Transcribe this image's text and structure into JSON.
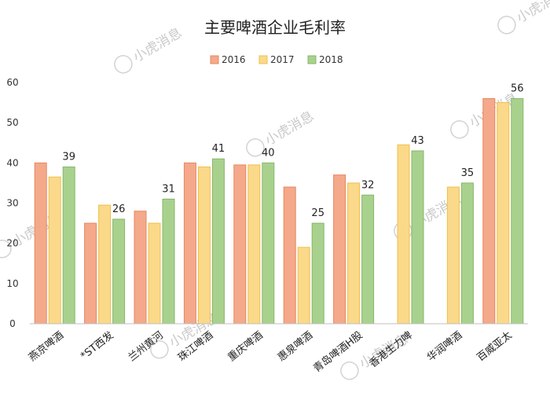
{
  "chart_data": {
    "type": "bar",
    "title": "主要啤酒企业毛利率",
    "categories": [
      "燕京啤酒",
      "*ST西发",
      "兰州黄河",
      "珠江啤酒",
      "重庆啤酒",
      "惠泉啤酒",
      "青岛啤酒H股",
      "香港生力啤",
      "华润啤酒",
      "百威亚太"
    ],
    "series": [
      {
        "name": "2016",
        "values": [
          40,
          25,
          28,
          40,
          39.5,
          34,
          37,
          null,
          null,
          56
        ]
      },
      {
        "name": "2017",
        "values": [
          36.5,
          29.5,
          25,
          39,
          39.5,
          19,
          35,
          44.5,
          34,
          55
        ]
      },
      {
        "name": "2018",
        "values": [
          39,
          26,
          31,
          41,
          40,
          25,
          32,
          43,
          35,
          56
        ]
      }
    ],
    "data_labels": [
      "39",
      "26",
      "31",
      "41",
      "40",
      "25",
      "32",
      "43",
      "35",
      "56"
    ],
    "yticks": [
      "0",
      "10",
      "20",
      "30",
      "40",
      "50",
      "60"
    ],
    "ylim": [
      0,
      60
    ],
    "xlabel": "",
    "ylabel": "",
    "grid": false,
    "legend_position": "top-center",
    "colors": {
      "2016_fill": "#f4a98a",
      "2016_stroke": "#e8875f",
      "2017_fill": "#fbd98a",
      "2017_stroke": "#efbf4e",
      "2018_fill": "#a9d18e",
      "2018_stroke": "#86b869",
      "axis": "#bfbfbf"
    }
  },
  "watermark": {
    "text": "小虎消息",
    "icon": "tiger-logo-icon"
  }
}
